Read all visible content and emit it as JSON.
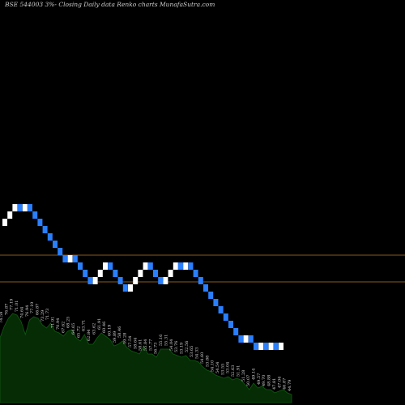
{
  "chart_data": {
    "type": "renko",
    "title": "BSE 544003 3%-  Closing Daily data  Renko  charts MunafaSutra.com",
    "reference_lines": [
      {
        "price": 49.5,
        "color": "#8a5a1e"
      },
      {
        "price": 46.2,
        "color": "#8a5a1e"
      }
    ],
    "ylim": [
      34,
      78
    ],
    "brick_size": 0.9,
    "colors": {
      "up": "#ffffff",
      "down": "#2a7fff",
      "volume_fill": "#062c06",
      "volume_line": "#0f5a0f",
      "line": "#8a5a1e"
    },
    "bricks": [
      {
        "dir": "up",
        "close": 54.0
      },
      {
        "dir": "up",
        "close": 54.9
      },
      {
        "dir": "up",
        "close": 55.8
      },
      {
        "dir": "down",
        "close": 54.9
      },
      {
        "dir": "up",
        "close": 55.8
      },
      {
        "dir": "down",
        "close": 54.9
      },
      {
        "dir": "down",
        "close": 54.0
      },
      {
        "dir": "down",
        "close": 53.1
      },
      {
        "dir": "down",
        "close": 52.2
      },
      {
        "dir": "down",
        "close": 51.3
      },
      {
        "dir": "down",
        "close": 50.4
      },
      {
        "dir": "down",
        "close": 49.5
      },
      {
        "dir": "down",
        "close": 48.6
      },
      {
        "dir": "up",
        "close": 49.5
      },
      {
        "dir": "down",
        "close": 48.6
      },
      {
        "dir": "down",
        "close": 47.7
      },
      {
        "dir": "down",
        "close": 46.8
      },
      {
        "dir": "down",
        "close": 45.9
      },
      {
        "dir": "up",
        "close": 46.8
      },
      {
        "dir": "up",
        "close": 47.7
      },
      {
        "dir": "up",
        "close": 48.6
      },
      {
        "dir": "down",
        "close": 47.7
      },
      {
        "dir": "down",
        "close": 46.8
      },
      {
        "dir": "down",
        "close": 45.9
      },
      {
        "dir": "down",
        "close": 45.0
      },
      {
        "dir": "up",
        "close": 45.9
      },
      {
        "dir": "up",
        "close": 46.8
      },
      {
        "dir": "up",
        "close": 47.7
      },
      {
        "dir": "up",
        "close": 48.6
      },
      {
        "dir": "down",
        "close": 47.7
      },
      {
        "dir": "down",
        "close": 46.8
      },
      {
        "dir": "down",
        "close": 45.9
      },
      {
        "dir": "up",
        "close": 46.8
      },
      {
        "dir": "up",
        "close": 47.7
      },
      {
        "dir": "up",
        "close": 48.6
      },
      {
        "dir": "down",
        "close": 47.7
      },
      {
        "dir": "up",
        "close": 48.6
      },
      {
        "dir": "down",
        "close": 47.7
      },
      {
        "dir": "down",
        "close": 46.8
      },
      {
        "dir": "down",
        "close": 45.9
      },
      {
        "dir": "down",
        "close": 45.0
      },
      {
        "dir": "down",
        "close": 44.1
      },
      {
        "dir": "down",
        "close": 43.2
      },
      {
        "dir": "down",
        "close": 42.3
      },
      {
        "dir": "down",
        "close": 41.4
      },
      {
        "dir": "down",
        "close": 40.5
      },
      {
        "dir": "down",
        "close": 39.6
      },
      {
        "dir": "down",
        "close": 38.7
      },
      {
        "dir": "up",
        "close": 39.6
      },
      {
        "dir": "down",
        "close": 38.7
      },
      {
        "dir": "down",
        "close": 37.8
      },
      {
        "dir": "up",
        "close": 38.7
      },
      {
        "dir": "down",
        "close": 37.8
      },
      {
        "dir": "up",
        "close": 38.7
      },
      {
        "dir": "down",
        "close": 37.8
      },
      {
        "dir": "up",
        "close": 38.7
      }
    ],
    "volume_labels": [
      "74.59",
      "76.87",
      "77.19",
      "71.01",
      "74.64",
      "76.94",
      "77.19",
      "66.87",
      "73.29",
      "71.73",
      "71.91",
      "70.94",
      "67.62",
      "68.25",
      "64.65",
      "65.72",
      "63.71",
      "62.84",
      "63.62",
      "61.91",
      "60.46",
      "60.19",
      "59.89",
      "58.46",
      "59.28",
      "57.54",
      "58.64",
      "58.61",
      "55.84",
      "57.77",
      "56.73",
      "55.16",
      "55.31",
      "54.04",
      "53.76",
      "53.19",
      "52.56",
      "53.65",
      "54.33",
      "54.60",
      "53.88",
      "54.10",
      "54.54",
      "53.55",
      "53.04",
      "52.63",
      "51.91",
      "51.28",
      "50.07",
      "49.14",
      "49.57",
      "49.70",
      "48.88",
      "47.81",
      "47.04",
      "46.87",
      "44.79"
    ],
    "volume_values": [
      40,
      47,
      52,
      55,
      54,
      50,
      42,
      51,
      53,
      52,
      48,
      46,
      49,
      44,
      43,
      41,
      44,
      45,
      40,
      38,
      42,
      36,
      36,
      40,
      43,
      41,
      39,
      35,
      36,
      38,
      34,
      32,
      31,
      30,
      35,
      30,
      30,
      28,
      33,
      33,
      33,
      30,
      29,
      28,
      29,
      26,
      26,
      25,
      22,
      20,
      19,
      17,
      16,
      15,
      16,
      14,
      15,
      14,
      11,
      8,
      12,
      9,
      10,
      8,
      8,
      6,
      7,
      8,
      6,
      5
    ]
  }
}
